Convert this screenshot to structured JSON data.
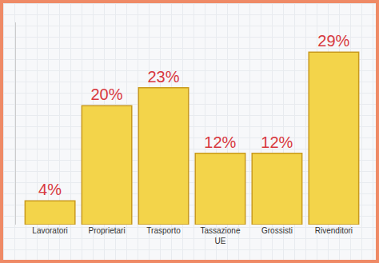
{
  "chart_data": {
    "type": "bar",
    "categories": [
      "Lavoratori",
      "Proprietari",
      "Trasporto",
      "Tassazione UE",
      "Grossisti",
      "Rivenditori"
    ],
    "values": [
      4,
      20,
      23,
      12,
      12,
      29
    ],
    "value_labels": [
      "4%",
      "20%",
      "23%",
      "12%",
      "12%",
      "29%"
    ],
    "color": "#f3d44a",
    "ylim": [
      0,
      34
    ],
    "yticks": [],
    "grid": false,
    "data_labels": true,
    "tick_labels": "x"
  }
}
